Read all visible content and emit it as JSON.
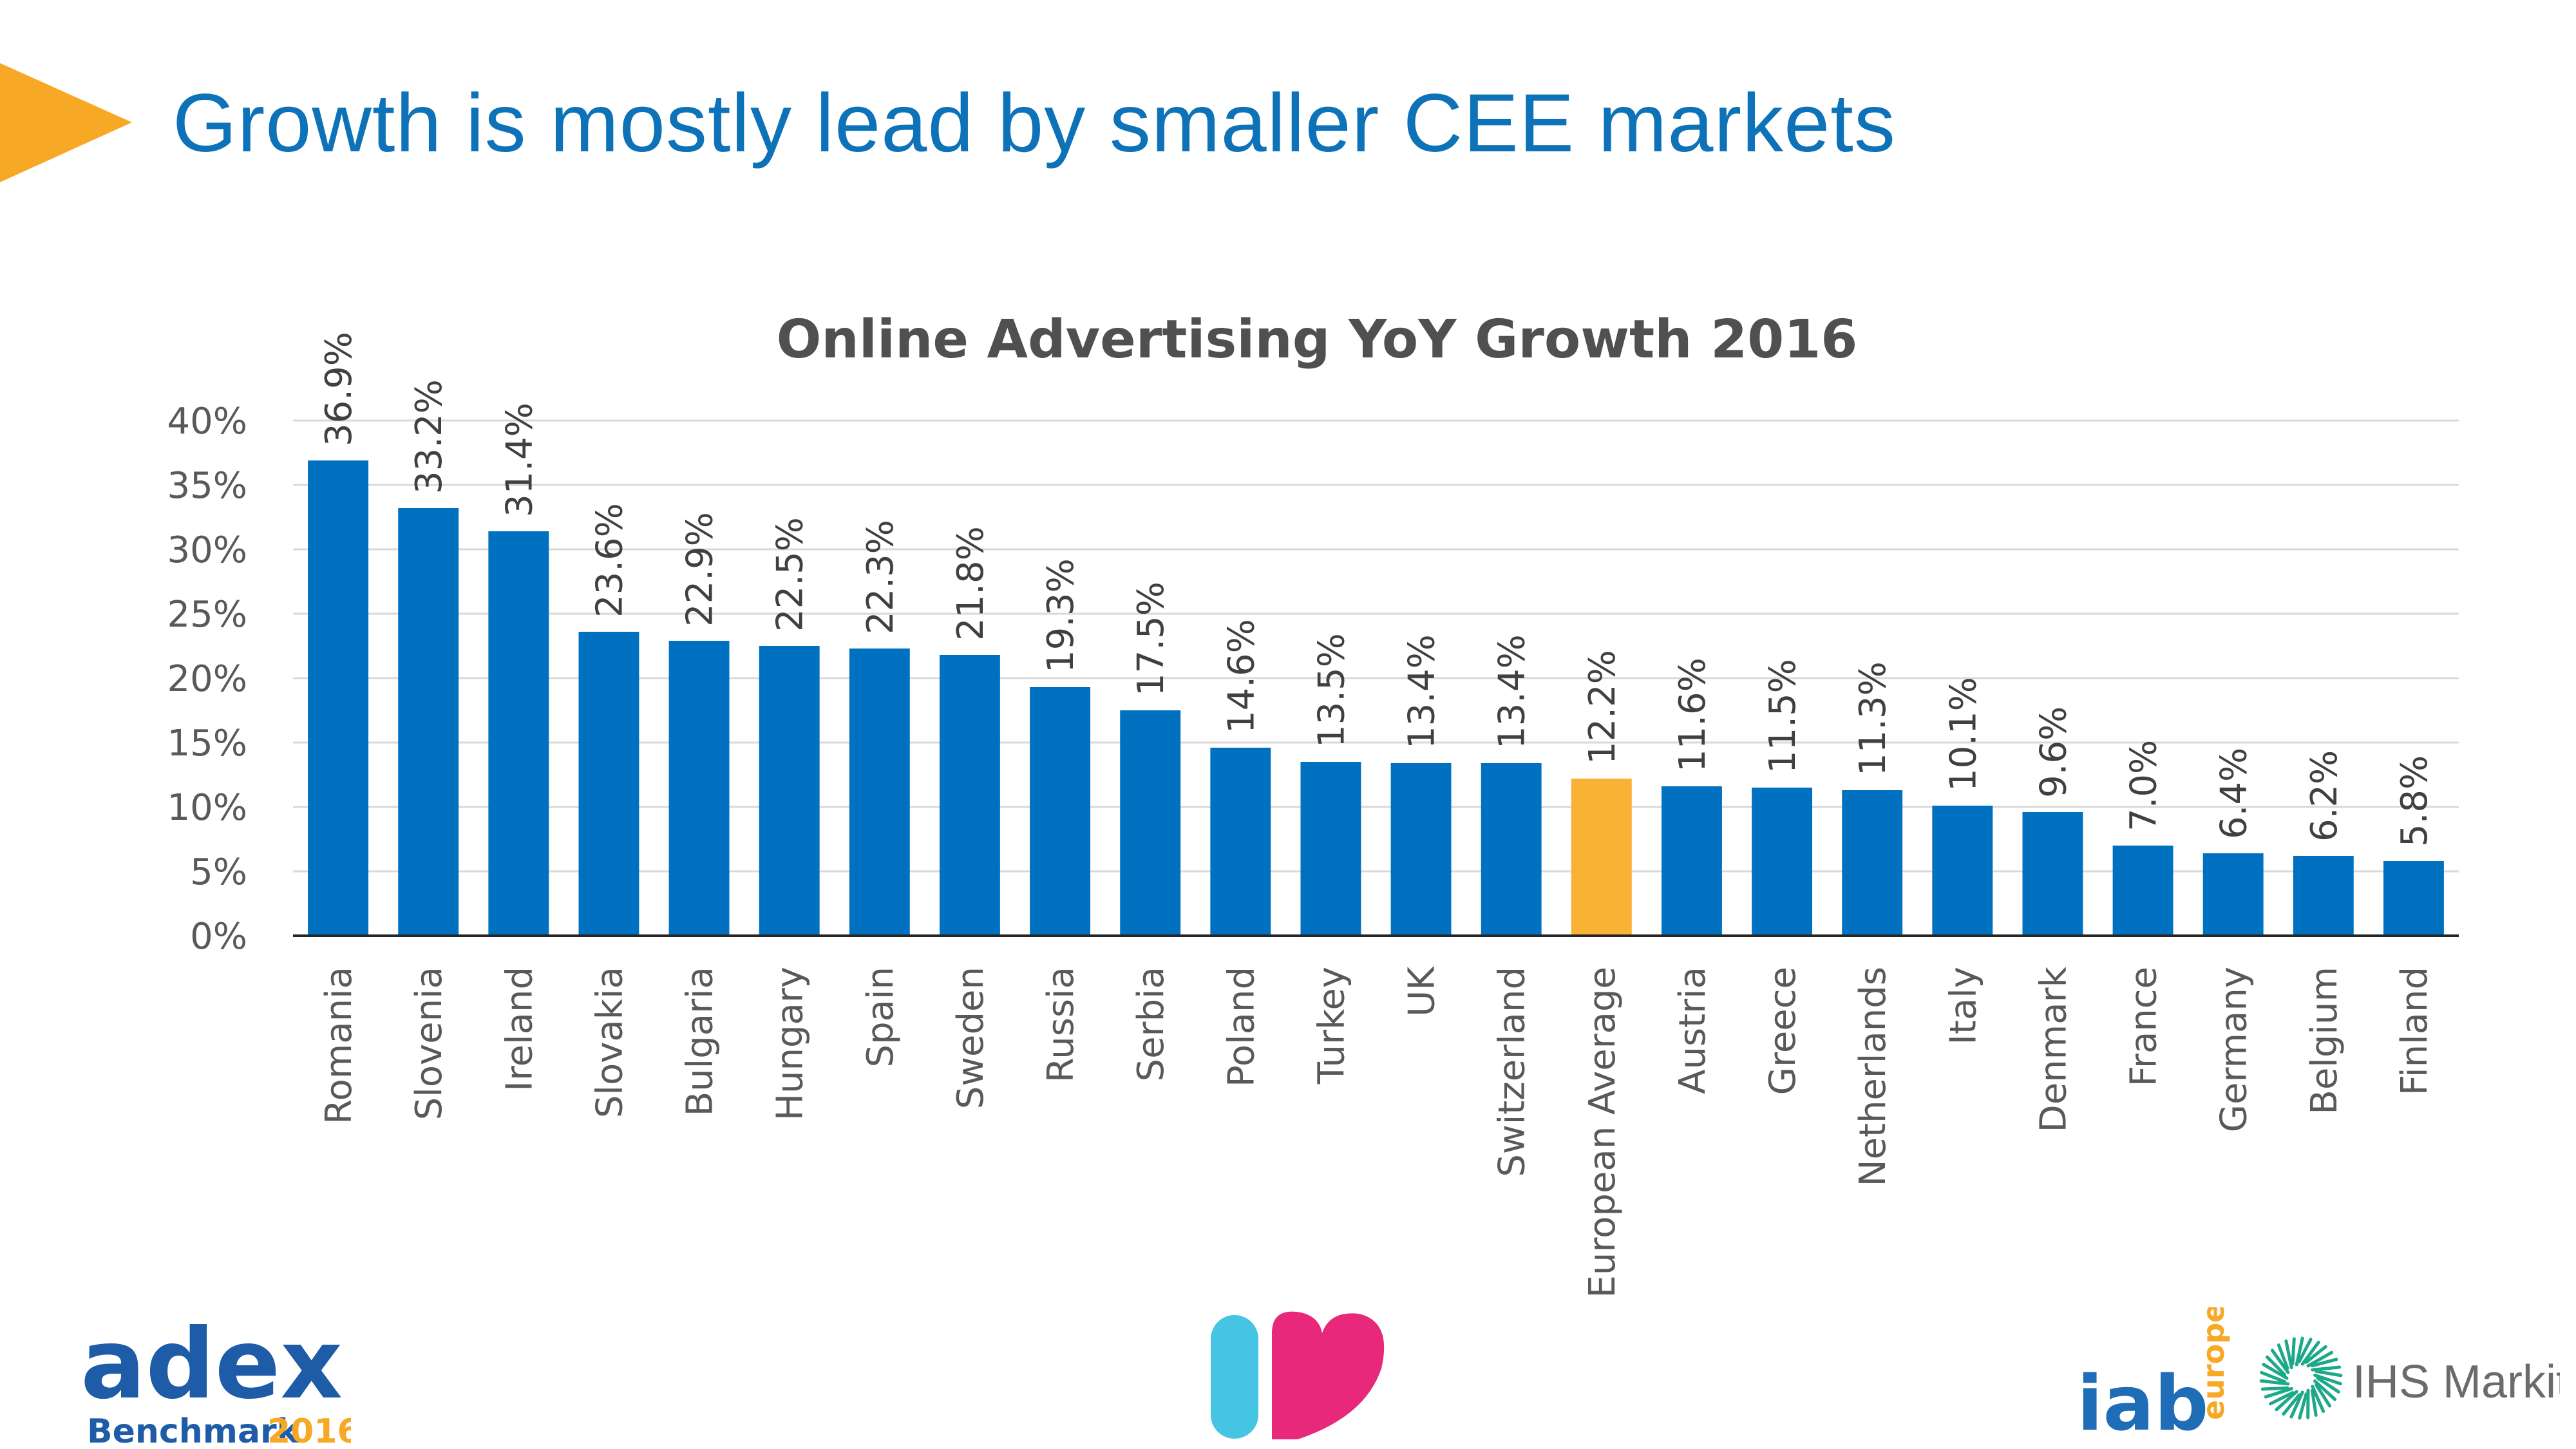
{
  "slide": {
    "title": "Growth is mostly lead by smaller CEE markets"
  },
  "logos": {
    "adex_word": "adex",
    "adex_sub": "Benchmark",
    "adex_year": "2016",
    "iab_word": "iab",
    "iab_sub": "europe",
    "ihs_word": "IHS Markit"
  },
  "colors": {
    "title_blue": "#0e72b8",
    "bar_blue": "#0070c0",
    "bar_highlight": "#f9b233",
    "arrow_orange": "#f7a824",
    "heart_cyan": "#45c4e4",
    "heart_pink": "#e8287b",
    "ihs_green": "#1ea88a"
  },
  "chart_data": {
    "type": "bar",
    "title": "Online Advertising YoY Growth 2016",
    "xlabel": "",
    "ylabel": "",
    "ylim": [
      0,
      40
    ],
    "yticks": [
      "0%",
      "5%",
      "10%",
      "15%",
      "20%",
      "25%",
      "30%",
      "35%",
      "40%"
    ],
    "grid": true,
    "legend": "none",
    "categories": [
      "Romania",
      "Slovenia",
      "Ireland",
      "Slovakia",
      "Bulgaria",
      "Hungary",
      "Spain",
      "Sweden",
      "Russia",
      "Serbia",
      "Poland",
      "Turkey",
      "UK",
      "Switzerland",
      "European Average",
      "Austria",
      "Greece",
      "Netherlands",
      "Italy",
      "Denmark",
      "France",
      "Germany",
      "Belgium",
      "Finland"
    ],
    "values": [
      36.9,
      33.2,
      31.4,
      23.6,
      22.9,
      22.5,
      22.3,
      21.8,
      19.3,
      17.5,
      14.6,
      13.5,
      13.4,
      13.4,
      12.2,
      11.6,
      11.5,
      11.3,
      10.1,
      9.6,
      7.0,
      6.4,
      6.2,
      5.8
    ],
    "data_labels": [
      "36.9%",
      "33.2%",
      "31.4%",
      "23.6%",
      "22.9%",
      "22.5%",
      "22.3%",
      "21.8%",
      "19.3%",
      "17.5%",
      "14.6%",
      "13.5%",
      "13.4%",
      "13.4%",
      "12.2%",
      "11.6%",
      "11.5%",
      "11.3%",
      "10.1%",
      "9.6%",
      "7.0%",
      "6.4%",
      "6.2%",
      "5.8%"
    ],
    "highlight": "European Average"
  }
}
